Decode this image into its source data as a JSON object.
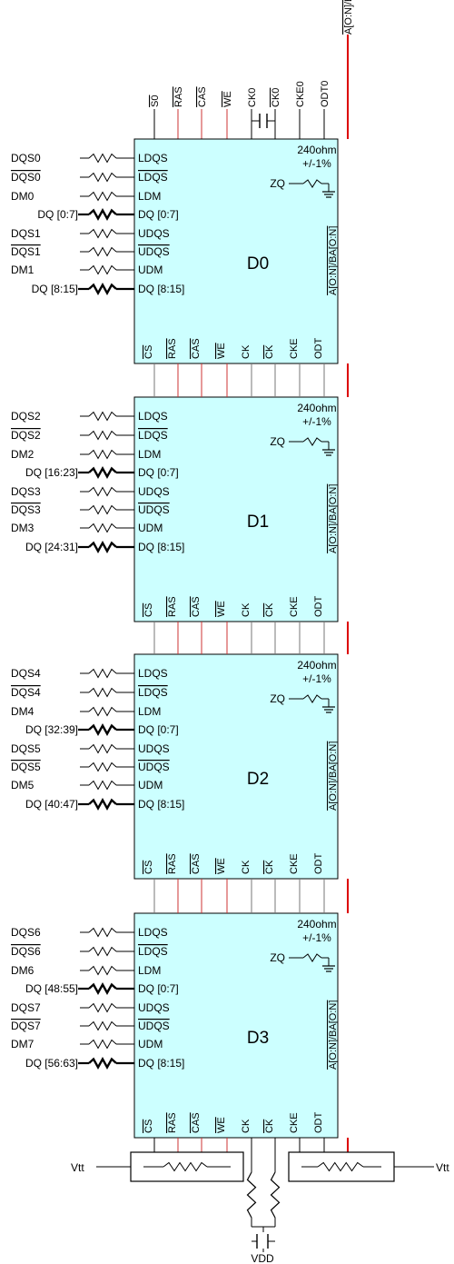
{
  "top_signals": [
    {
      "label": "S0",
      "overline": true
    },
    {
      "label": "RAS",
      "overline": true
    },
    {
      "label": "CAS",
      "overline": true
    },
    {
      "label": "WE",
      "overline": true
    },
    {
      "label": "CK0",
      "overline": false
    },
    {
      "label": "CK0",
      "overline": true
    },
    {
      "label": "CKE0",
      "overline": false
    },
    {
      "label": "ODT0",
      "overline": false
    },
    {
      "label": "A[O:N]/BA[O:N]",
      "overline": true
    }
  ],
  "chip_left_pins": [
    {
      "label": "LDQS",
      "overline": false
    },
    {
      "label": "LDQS",
      "overline": true
    },
    {
      "label": "LDM",
      "overline": false
    },
    {
      "label": "DQ [0:7]",
      "overline": false
    },
    {
      "label": "UDQS",
      "overline": false
    },
    {
      "label": "UDQS",
      "overline": true
    },
    {
      "label": "UDM",
      "overline": false
    },
    {
      "label": "DQ [8:15]",
      "overline": false
    }
  ],
  "chip_bottom_pins": [
    {
      "label": "CS",
      "overline": true
    },
    {
      "label": "RAS",
      "overline": true
    },
    {
      "label": "CAS",
      "overline": true
    },
    {
      "label": "WE",
      "overline": true
    },
    {
      "label": "CK",
      "overline": false
    },
    {
      "label": "CK",
      "overline": true
    },
    {
      "label": "CKE",
      "overline": false
    },
    {
      "label": "ODT",
      "overline": false
    },
    {
      "label": "A[O:N]/BA[O:N]",
      "overline": true
    }
  ],
  "chip_right_pin": {
    "label": "A[O:N]/BA[O:N]",
    "overline": true
  },
  "termination": {
    "value": "240ohm",
    "tolerance": "+/-1%",
    "pin": "ZQ"
  },
  "chips": [
    {
      "name": "D0",
      "signals": [
        {
          "label": "DQS0",
          "overline": false
        },
        {
          "label": "DQS0",
          "overline": true
        },
        {
          "label": "DM0",
          "overline": false
        },
        {
          "label": "DQ [0:7]",
          "overline": false
        },
        {
          "label": "DQS1",
          "overline": false
        },
        {
          "label": "DQS1",
          "overline": true
        },
        {
          "label": "DM1",
          "overline": false
        },
        {
          "label": "DQ [8:15]",
          "overline": false
        }
      ]
    },
    {
      "name": "D1",
      "signals": [
        {
          "label": "DQS2",
          "overline": false
        },
        {
          "label": "DQS2",
          "overline": true
        },
        {
          "label": "DM2",
          "overline": false
        },
        {
          "label": "DQ [16:23]",
          "overline": false
        },
        {
          "label": "DQS3",
          "overline": false
        },
        {
          "label": "DQS3",
          "overline": true
        },
        {
          "label": "DM3",
          "overline": false
        },
        {
          "label": "DQ [24:31]",
          "overline": false
        }
      ]
    },
    {
      "name": "D2",
      "signals": [
        {
          "label": "DQS4",
          "overline": false
        },
        {
          "label": "DQS4",
          "overline": true
        },
        {
          "label": "DM4",
          "overline": false
        },
        {
          "label": "DQ [32:39]",
          "overline": false
        },
        {
          "label": "DQS5",
          "overline": false
        },
        {
          "label": "DQS5",
          "overline": true
        },
        {
          "label": "DM5",
          "overline": false
        },
        {
          "label": "DQ [40:47]",
          "overline": false
        }
      ]
    },
    {
      "name": "D3",
      "signals": [
        {
          "label": "DQS6",
          "overline": false
        },
        {
          "label": "DQS6",
          "overline": true
        },
        {
          "label": "DM6",
          "overline": false
        },
        {
          "label": "DQ [48:55]",
          "overline": false
        },
        {
          "label": "DQS7",
          "overline": false
        },
        {
          "label": "DQS7",
          "overline": true
        },
        {
          "label": "DM7",
          "overline": false
        },
        {
          "label": "DQ [56:63]",
          "overline": false
        }
      ]
    }
  ],
  "rail_left": "Vtt",
  "rail_right": "Vtt",
  "supply": "VDD",
  "colors": {
    "chip_fill": "#ccffff",
    "chip_stroke": "#000000",
    "wire": "#000000",
    "control_wire": "#cc3333",
    "address_wire": "#dd0000",
    "between_wire": "#777777"
  }
}
